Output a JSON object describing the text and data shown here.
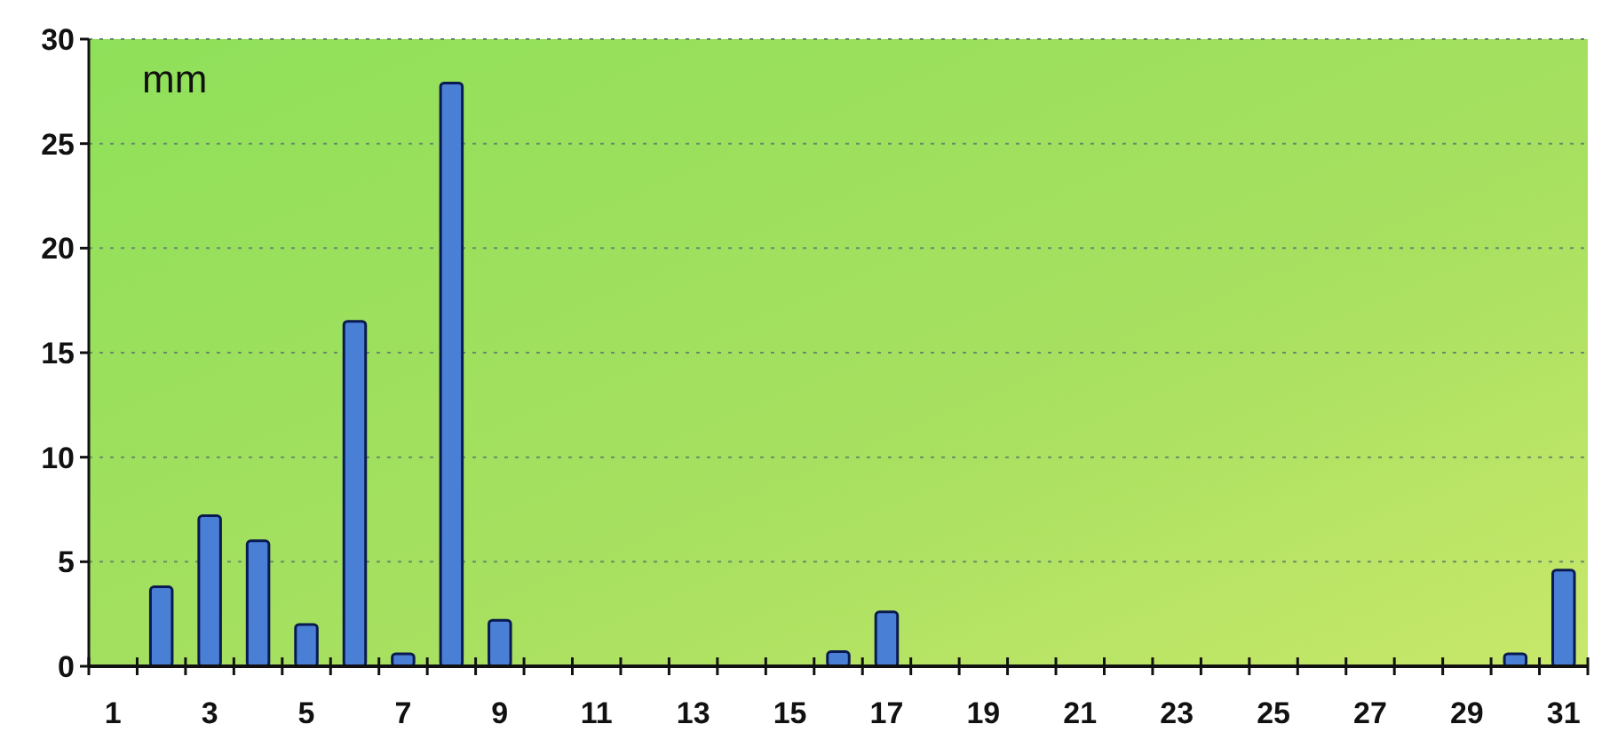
{
  "chart_data": {
    "type": "bar",
    "ylabel": "mm",
    "x": [
      1,
      2,
      3,
      4,
      5,
      6,
      7,
      8,
      9,
      10,
      11,
      12,
      13,
      14,
      15,
      16,
      17,
      18,
      19,
      20,
      21,
      22,
      23,
      24,
      25,
      26,
      27,
      28,
      29,
      30,
      31
    ],
    "values": [
      0,
      3.8,
      7.2,
      6.0,
      2.0,
      16.5,
      0.6,
      27.9,
      2.2,
      0,
      0,
      0,
      0,
      0,
      0,
      0.7,
      2.6,
      0,
      0,
      0,
      0,
      0,
      0,
      0,
      0,
      0,
      0,
      0,
      0,
      0.6,
      4.6
    ],
    "color": "#4a7fd6",
    "xlim": [
      0.5,
      31.5
    ],
    "xticks": [
      1,
      3,
      5,
      7,
      9,
      11,
      13,
      15,
      17,
      19,
      21,
      23,
      25,
      27,
      29,
      31,
      {
        "value": 0.5,
        "label": null
      },
      {
        "value": 1.5,
        "label": null
      },
      {
        "value": 2.5,
        "label": null
      },
      {
        "value": 3.5,
        "label": null
      },
      {
        "value": 4.5,
        "label": null
      },
      {
        "value": 5.5,
        "label": null
      },
      {
        "value": 6.5,
        "label": null
      },
      {
        "value": 7.5,
        "label": null
      },
      {
        "value": 8.5,
        "label": null
      },
      {
        "value": 9.5,
        "label": null
      },
      {
        "value": 10.5,
        "label": null
      },
      {
        "value": 11.5,
        "label": null
      },
      {
        "value": 12.5,
        "label": null
      },
      {
        "value": 13.5,
        "label": null
      },
      {
        "value": 14.5,
        "label": null
      },
      {
        "value": 15.5,
        "label": null
      },
      {
        "value": 16.5,
        "label": null
      },
      {
        "value": 17.5,
        "label": null
      },
      {
        "value": 18.5,
        "label": null
      },
      {
        "value": 19.5,
        "label": null
      },
      {
        "value": 20.5,
        "label": null
      },
      {
        "value": 21.5,
        "label": null
      },
      {
        "value": 22.5,
        "label": null
      },
      {
        "value": 23.5,
        "label": null
      },
      {
        "value": 24.5,
        "label": null
      },
      {
        "value": 25.5,
        "label": null
      },
      {
        "value": 26.5,
        "label": null
      },
      {
        "value": 27.5,
        "label": null
      },
      {
        "value": 28.5,
        "label": null
      },
      {
        "value": 29.5,
        "label": null
      },
      {
        "value": 30.5,
        "label": null
      },
      {
        "value": 31.5,
        "label": null
      }
    ],
    "ylim": [
      0,
      30
    ],
    "yticks": [
      0,
      5,
      10,
      15,
      20,
      25,
      30
    ],
    "grid": "y"
  }
}
